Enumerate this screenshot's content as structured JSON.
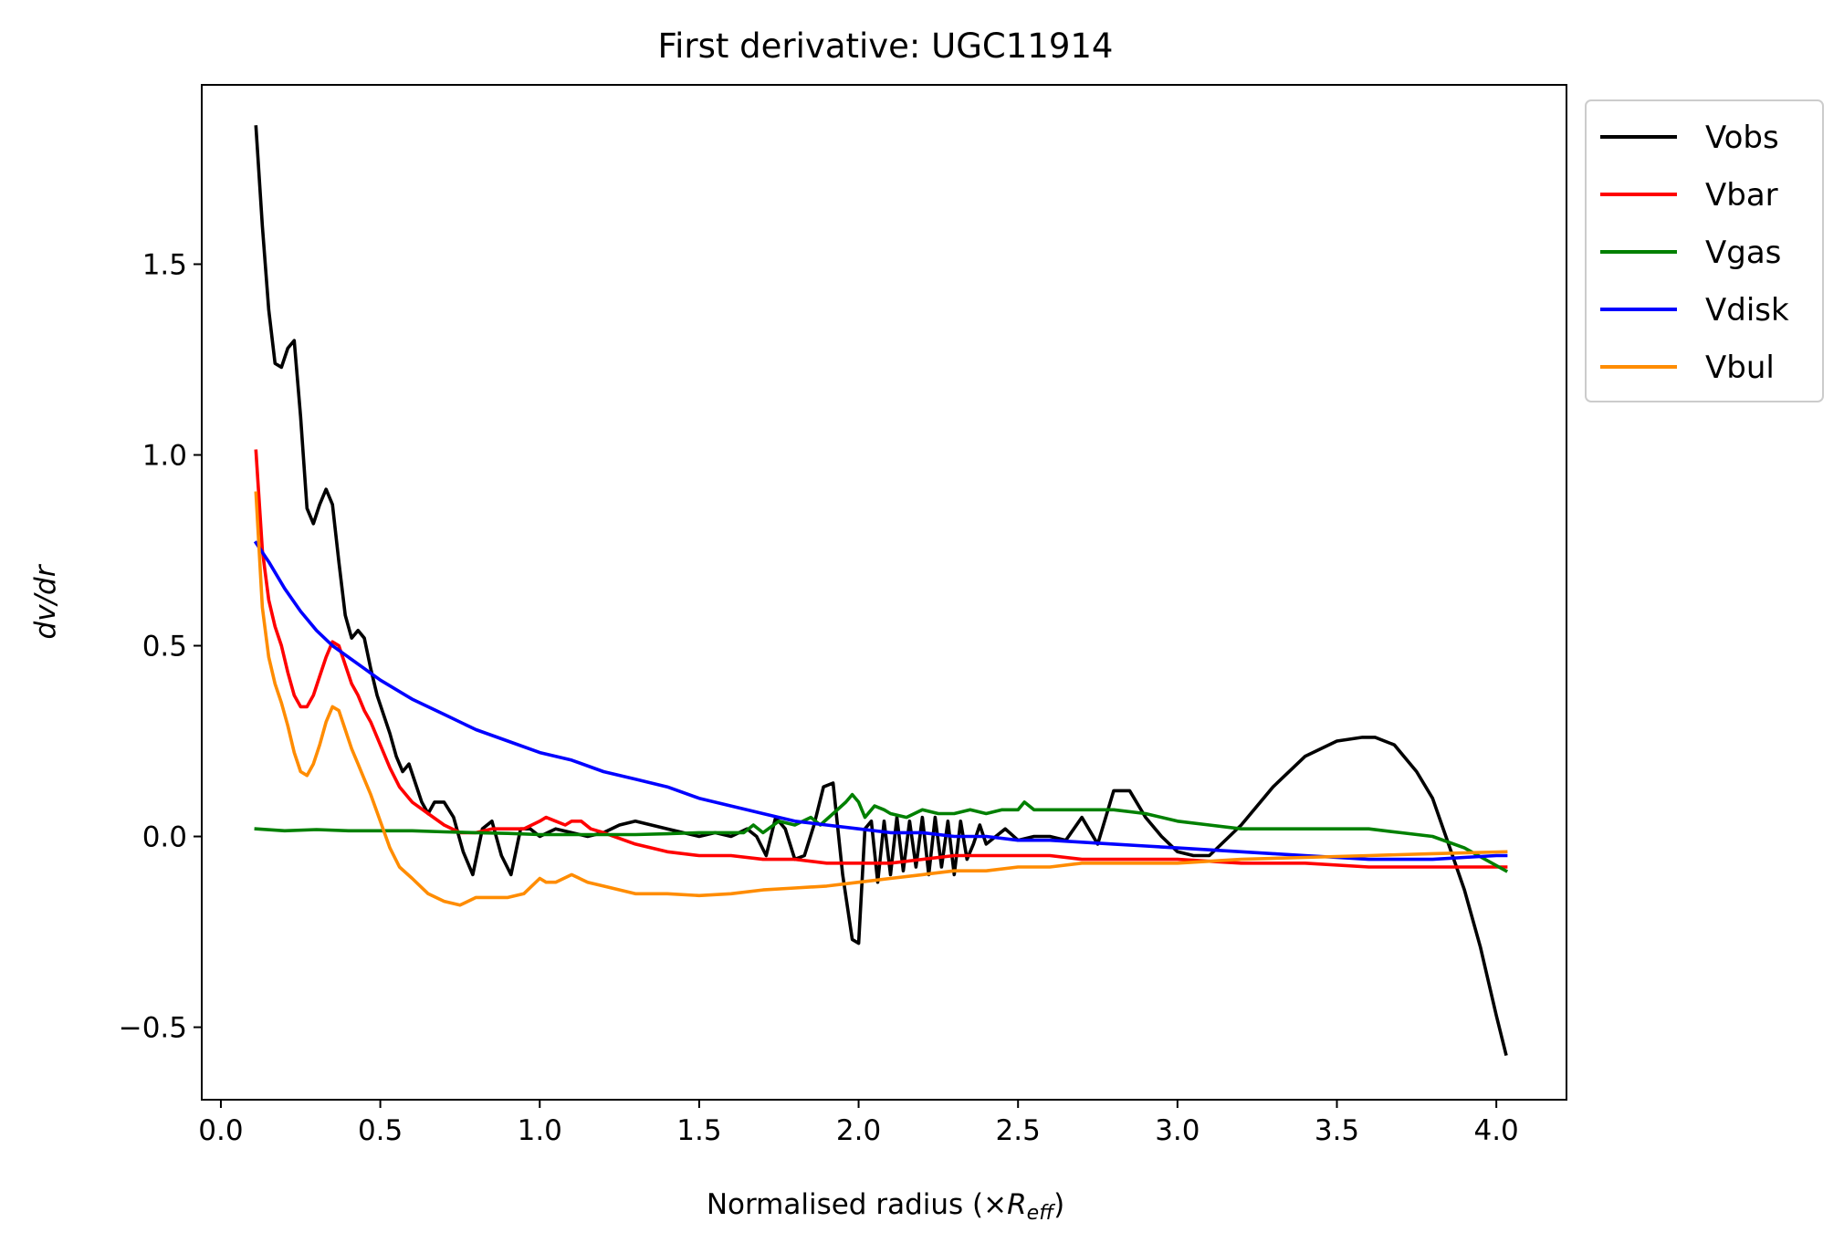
{
  "chart_data": {
    "type": "line",
    "title": "First derivative: UGC11914",
    "xlabel": "Normalised radius (×R_eff)",
    "xlabel_prefix": "Normalised radius (×",
    "xlabel_var": "R",
    "xlabel_sub": "eff",
    "xlabel_suffix": ")",
    "ylabel": "dv/dr",
    "xlim": [
      -0.06,
      4.22
    ],
    "ylim": [
      -0.69,
      1.97
    ],
    "xticks": [
      0.0,
      0.5,
      1.0,
      1.5,
      2.0,
      2.5,
      3.0,
      3.5,
      4.0
    ],
    "xtick_labels": [
      "0.0",
      "0.5",
      "1.0",
      "1.5",
      "2.0",
      "2.5",
      "3.0",
      "3.5",
      "4.0"
    ],
    "yticks": [
      -0.5,
      0.0,
      0.5,
      1.0,
      1.5
    ],
    "ytick_labels": [
      "−0.5",
      "0.0",
      "0.5",
      "1.0",
      "1.5"
    ],
    "legend_position": "outside-upper-right",
    "grid": false,
    "series": [
      {
        "name": "Vobs",
        "color": "#000000",
        "x": [
          0.11,
          0.13,
          0.15,
          0.17,
          0.19,
          0.21,
          0.23,
          0.25,
          0.27,
          0.29,
          0.31,
          0.33,
          0.35,
          0.37,
          0.39,
          0.41,
          0.43,
          0.45,
          0.47,
          0.49,
          0.51,
          0.53,
          0.55,
          0.57,
          0.59,
          0.61,
          0.63,
          0.65,
          0.67,
          0.7,
          0.73,
          0.76,
          0.79,
          0.82,
          0.85,
          0.88,
          0.91,
          0.94,
          0.97,
          1.0,
          1.05,
          1.1,
          1.15,
          1.2,
          1.25,
          1.3,
          1.35,
          1.4,
          1.45,
          1.5,
          1.55,
          1.6,
          1.65,
          1.68,
          1.71,
          1.74,
          1.77,
          1.8,
          1.83,
          1.86,
          1.89,
          1.92,
          1.95,
          1.98,
          2.0,
          2.02,
          2.04,
          2.06,
          2.08,
          2.1,
          2.12,
          2.14,
          2.16,
          2.18,
          2.2,
          2.22,
          2.24,
          2.26,
          2.28,
          2.3,
          2.32,
          2.34,
          2.36,
          2.38,
          2.4,
          2.43,
          2.46,
          2.5,
          2.55,
          2.6,
          2.65,
          2.7,
          2.75,
          2.8,
          2.85,
          2.9,
          2.95,
          3.0,
          3.05,
          3.1,
          3.2,
          3.3,
          3.4,
          3.5,
          3.58,
          3.62,
          3.68,
          3.75,
          3.8,
          3.85,
          3.9,
          3.95,
          4.0,
          4.03
        ],
        "y": [
          1.86,
          1.6,
          1.38,
          1.24,
          1.23,
          1.28,
          1.3,
          1.1,
          0.86,
          0.82,
          0.87,
          0.91,
          0.87,
          0.72,
          0.58,
          0.52,
          0.54,
          0.52,
          0.44,
          0.37,
          0.32,
          0.27,
          0.21,
          0.17,
          0.19,
          0.14,
          0.09,
          0.06,
          0.09,
          0.09,
          0.05,
          -0.04,
          -0.1,
          0.02,
          0.04,
          -0.05,
          -0.1,
          0.02,
          0.02,
          0.0,
          0.02,
          0.01,
          0.0,
          0.01,
          0.03,
          0.04,
          0.03,
          0.02,
          0.01,
          0.0,
          0.01,
          0.0,
          0.02,
          0.0,
          -0.05,
          0.05,
          0.02,
          -0.06,
          -0.05,
          0.03,
          0.13,
          0.14,
          -0.1,
          -0.27,
          -0.28,
          0.02,
          0.04,
          -0.12,
          0.04,
          -0.1,
          0.05,
          -0.09,
          0.04,
          -0.08,
          0.05,
          -0.1,
          0.05,
          -0.08,
          0.04,
          -0.1,
          0.04,
          -0.06,
          -0.02,
          0.03,
          -0.02,
          0.0,
          0.02,
          -0.01,
          0.0,
          0.0,
          -0.01,
          0.05,
          -0.02,
          0.12,
          0.12,
          0.05,
          0.0,
          -0.04,
          -0.05,
          -0.05,
          0.03,
          0.13,
          0.21,
          0.25,
          0.26,
          0.26,
          0.24,
          0.17,
          0.1,
          -0.02,
          -0.14,
          -0.29,
          -0.47,
          -0.57
        ]
      },
      {
        "name": "Vbar",
        "color": "#ff0000",
        "x": [
          0.11,
          0.13,
          0.15,
          0.17,
          0.19,
          0.21,
          0.23,
          0.25,
          0.27,
          0.29,
          0.31,
          0.33,
          0.35,
          0.37,
          0.39,
          0.41,
          0.43,
          0.45,
          0.47,
          0.5,
          0.53,
          0.56,
          0.6,
          0.65,
          0.7,
          0.75,
          0.8,
          0.85,
          0.9,
          0.95,
          1.0,
          1.02,
          1.05,
          1.08,
          1.1,
          1.13,
          1.16,
          1.2,
          1.3,
          1.4,
          1.5,
          1.6,
          1.7,
          1.8,
          1.9,
          2.0,
          2.1,
          2.2,
          2.3,
          2.4,
          2.5,
          2.6,
          2.7,
          2.8,
          2.9,
          3.0,
          3.2,
          3.4,
          3.6,
          3.8,
          4.03
        ],
        "y": [
          1.01,
          0.75,
          0.62,
          0.55,
          0.5,
          0.43,
          0.37,
          0.34,
          0.34,
          0.37,
          0.42,
          0.47,
          0.51,
          0.5,
          0.45,
          0.4,
          0.37,
          0.33,
          0.3,
          0.24,
          0.18,
          0.13,
          0.09,
          0.06,
          0.03,
          0.01,
          0.01,
          0.02,
          0.02,
          0.02,
          0.04,
          0.05,
          0.04,
          0.03,
          0.04,
          0.04,
          0.02,
          0.01,
          -0.02,
          -0.04,
          -0.05,
          -0.05,
          -0.06,
          -0.06,
          -0.07,
          -0.07,
          -0.07,
          -0.06,
          -0.05,
          -0.05,
          -0.05,
          -0.05,
          -0.06,
          -0.06,
          -0.06,
          -0.06,
          -0.07,
          -0.07,
          -0.08,
          -0.08,
          -0.08
        ]
      },
      {
        "name": "Vgas",
        "color": "#008000",
        "x": [
          0.11,
          0.2,
          0.3,
          0.4,
          0.5,
          0.6,
          0.7,
          0.8,
          0.9,
          1.0,
          1.1,
          1.2,
          1.3,
          1.4,
          1.5,
          1.6,
          1.64,
          1.67,
          1.7,
          1.75,
          1.8,
          1.85,
          1.88,
          1.92,
          1.96,
          1.98,
          2.0,
          2.02,
          2.05,
          2.08,
          2.1,
          2.15,
          2.2,
          2.25,
          2.3,
          2.35,
          2.4,
          2.45,
          2.5,
          2.52,
          2.55,
          2.6,
          2.7,
          2.8,
          2.9,
          3.0,
          3.1,
          3.2,
          3.3,
          3.4,
          3.5,
          3.6,
          3.7,
          3.8,
          3.9,
          4.03
        ],
        "y": [
          0.02,
          0.015,
          0.018,
          0.015,
          0.015,
          0.015,
          0.012,
          0.01,
          0.008,
          0.005,
          0.005,
          0.005,
          0.005,
          0.007,
          0.01,
          0.01,
          0.01,
          0.03,
          0.01,
          0.04,
          0.03,
          0.05,
          0.03,
          0.06,
          0.09,
          0.11,
          0.09,
          0.05,
          0.08,
          0.07,
          0.06,
          0.05,
          0.07,
          0.06,
          0.06,
          0.07,
          0.06,
          0.07,
          0.07,
          0.09,
          0.07,
          0.07,
          0.07,
          0.07,
          0.06,
          0.04,
          0.03,
          0.02,
          0.02,
          0.02,
          0.02,
          0.02,
          0.01,
          0.0,
          -0.03,
          -0.09
        ]
      },
      {
        "name": "Vdisk",
        "color": "#0000ff",
        "x": [
          0.11,
          0.15,
          0.2,
          0.25,
          0.3,
          0.35,
          0.4,
          0.45,
          0.5,
          0.6,
          0.7,
          0.8,
          0.9,
          1.0,
          1.1,
          1.2,
          1.3,
          1.4,
          1.5,
          1.6,
          1.7,
          1.8,
          1.9,
          2.0,
          2.1,
          2.2,
          2.3,
          2.4,
          2.5,
          2.6,
          2.7,
          2.8,
          2.9,
          3.0,
          3.1,
          3.2,
          3.3,
          3.4,
          3.5,
          3.6,
          3.7,
          3.8,
          3.9,
          4.0,
          4.03
        ],
        "y": [
          0.77,
          0.72,
          0.65,
          0.59,
          0.54,
          0.5,
          0.47,
          0.44,
          0.41,
          0.36,
          0.32,
          0.28,
          0.25,
          0.22,
          0.2,
          0.17,
          0.15,
          0.13,
          0.1,
          0.08,
          0.06,
          0.04,
          0.03,
          0.02,
          0.01,
          0.01,
          0.0,
          0.0,
          -0.01,
          -0.01,
          -0.015,
          -0.02,
          -0.025,
          -0.03,
          -0.035,
          -0.04,
          -0.045,
          -0.05,
          -0.055,
          -0.06,
          -0.06,
          -0.06,
          -0.055,
          -0.05,
          -0.05
        ]
      },
      {
        "name": "Vbul",
        "color": "#ff8c00",
        "x": [
          0.11,
          0.13,
          0.15,
          0.17,
          0.19,
          0.21,
          0.23,
          0.25,
          0.27,
          0.29,
          0.31,
          0.33,
          0.35,
          0.37,
          0.39,
          0.41,
          0.43,
          0.45,
          0.47,
          0.5,
          0.53,
          0.56,
          0.6,
          0.65,
          0.7,
          0.75,
          0.8,
          0.85,
          0.9,
          0.95,
          1.0,
          1.02,
          1.05,
          1.1,
          1.15,
          1.2,
          1.3,
          1.4,
          1.5,
          1.6,
          1.7,
          1.8,
          1.9,
          2.0,
          2.1,
          2.2,
          2.3,
          2.4,
          2.5,
          2.6,
          2.7,
          2.8,
          3.0,
          3.2,
          3.4,
          3.6,
          3.8,
          4.03
        ],
        "y": [
          0.9,
          0.6,
          0.47,
          0.4,
          0.35,
          0.29,
          0.22,
          0.17,
          0.16,
          0.19,
          0.24,
          0.3,
          0.34,
          0.33,
          0.28,
          0.23,
          0.19,
          0.15,
          0.11,
          0.04,
          -0.03,
          -0.08,
          -0.11,
          -0.15,
          -0.17,
          -0.18,
          -0.16,
          -0.16,
          -0.16,
          -0.15,
          -0.11,
          -0.12,
          -0.12,
          -0.1,
          -0.12,
          -0.13,
          -0.15,
          -0.15,
          -0.155,
          -0.15,
          -0.14,
          -0.135,
          -0.13,
          -0.12,
          -0.11,
          -0.1,
          -0.09,
          -0.09,
          -0.08,
          -0.08,
          -0.07,
          -0.07,
          -0.07,
          -0.06,
          -0.055,
          -0.05,
          -0.045,
          -0.04
        ]
      }
    ]
  }
}
